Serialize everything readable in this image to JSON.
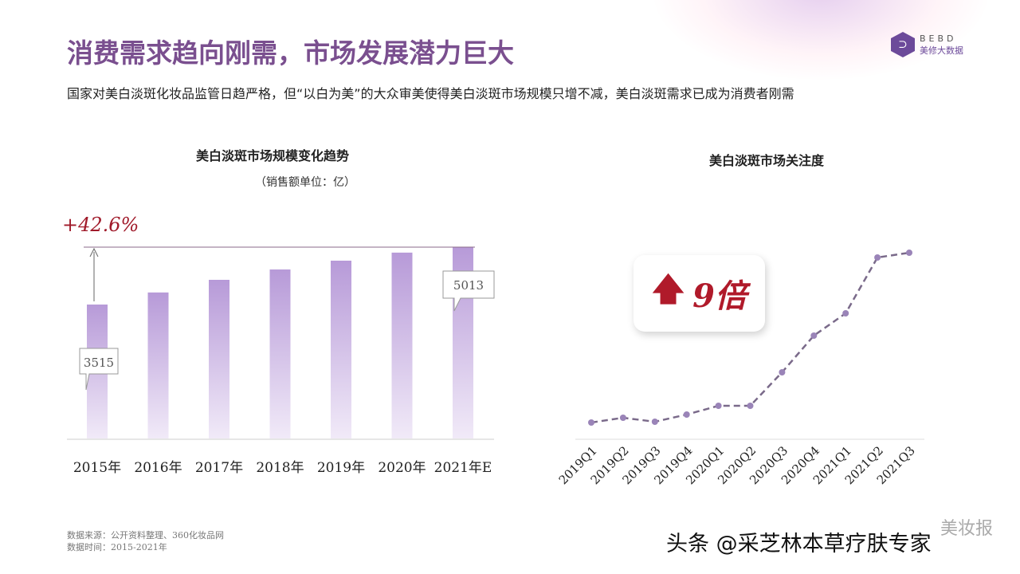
{
  "header": {
    "title": "消费需求趋向刚需，市场发展潜力巨大",
    "subtitle": "国家对美白淡斑化妆品监管日趋严格，但“以白为美”的大众审美使得美白淡斑市场规模只增不减，美白淡斑需求已成为消费者刚需",
    "logo_en": "BEBD",
    "logo_cn": "美修大数据"
  },
  "accent": "#7a4f8f",
  "chart_data": [
    {
      "type": "bar",
      "title": "美白淡斑市场规模变化趋势",
      "unit": "（销售额单位：亿）",
      "categories": [
        "2015年",
        "2016年",
        "2017年",
        "2018年",
        "2019年",
        "2020年",
        "2021年E"
      ],
      "values": [
        3515,
        3830,
        4160,
        4430,
        4660,
        4870,
        5013
      ],
      "labels": {
        "first": "3515",
        "last": "5013"
      },
      "growth": "+42.6%",
      "ylim": [
        0,
        5013
      ]
    },
    {
      "type": "line",
      "title": "美白淡斑市场关注度",
      "categories": [
        "2019Q1",
        "2019Q2",
        "2019Q3",
        "2019Q4",
        "2020Q1",
        "2020Q2",
        "2020Q3",
        "2020Q4",
        "2021Q1",
        "2021Q2",
        "2021Q3"
      ],
      "values": [
        20,
        26,
        21,
        30,
        41,
        41,
        83,
        129,
        157,
        227,
        233
      ],
      "callout_arrow": "up-arrow",
      "callout": "9倍"
    }
  ],
  "footer": {
    "source": "数据来源：公开资料整理、360化妆品网",
    "time": "数据时间：2015-2021年",
    "watermark": "头条 @采芝林本草疗肤专家",
    "watermark2": "美妆报"
  }
}
